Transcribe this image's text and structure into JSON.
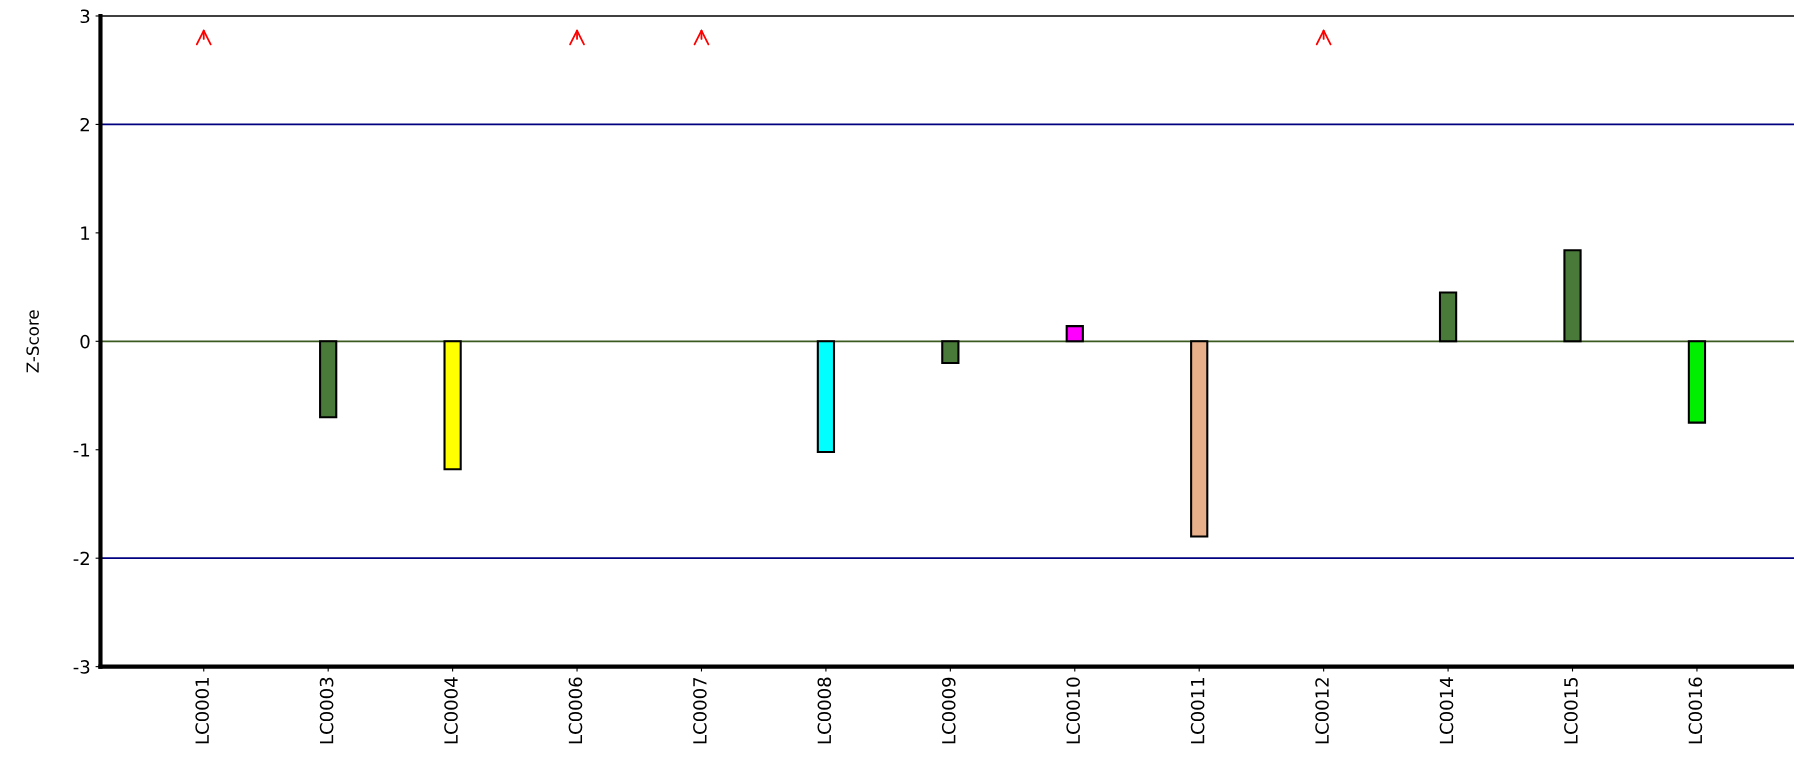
{
  "chart_data": {
    "type": "bar",
    "ylabel": "Z-Score",
    "categories": [
      "LC0001",
      "LC0003",
      "LC0004",
      "LC0006",
      "LC0007",
      "LC0008",
      "LC0009",
      "LC0010",
      "LC0011",
      "LC0012",
      "LC0014",
      "LC0015",
      "LC0016"
    ],
    "values": [
      null,
      -0.7,
      -1.18,
      null,
      null,
      -1.02,
      -0.2,
      0.14,
      -1.8,
      null,
      0.45,
      0.84,
      -0.75
    ],
    "colors": [
      "#4a7a3a",
      "#4a7a3a",
      "#ffff00",
      "#4a7a3a",
      "#4a7a3a",
      "#00ffff",
      "#4a7a3a",
      "#ff00ff",
      "#e8b08a",
      "#4a7a3a",
      "#4a7a3a",
      "#4a7a3a",
      "#00ee00"
    ],
    "ylim": [
      -3,
      3
    ],
    "yticks": [
      -3,
      -2,
      -1,
      0,
      1,
      2,
      3
    ],
    "grid": false,
    "ref_lines": [
      {
        "axis": "y",
        "value": 2,
        "color": "#000080"
      },
      {
        "axis": "y",
        "value": -2,
        "color": "#000080"
      },
      {
        "axis": "y",
        "value": 0,
        "color": "#3a5a20"
      }
    ]
  }
}
